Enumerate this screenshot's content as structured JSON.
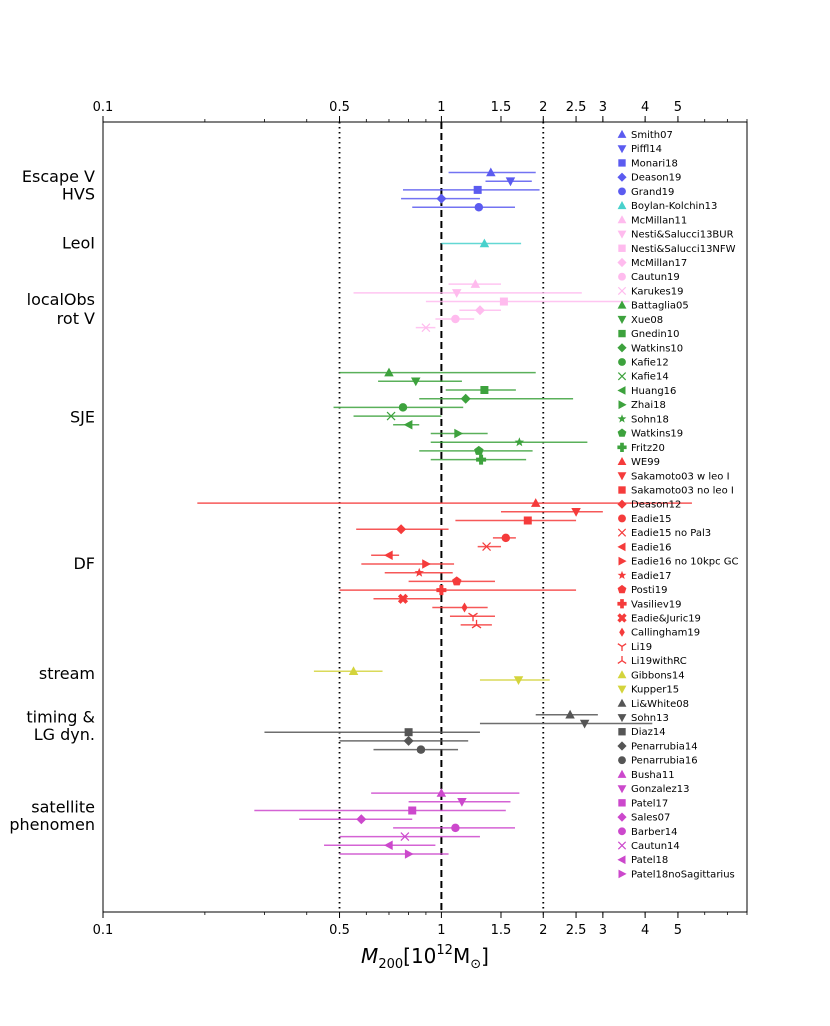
{
  "chart_data": {
    "type": "scatter",
    "xscale": "log",
    "xlim": [
      0.1,
      8.0
    ],
    "xlabel": "M",
    "xlabel_sub": "200",
    "xlabel_rest": "[10",
    "xlabel_sup": "12",
    "xlabel_unit": "M",
    "xlabel_unit_sub": "⊙",
    "xlabel_close": "]",
    "xticks": [
      {
        "value": 0.1,
        "label": "0.1"
      },
      {
        "value": 0.5,
        "label": "0.5"
      },
      {
        "value": 1,
        "label": "1"
      },
      {
        "value": 1.5,
        "label": "1.5"
      },
      {
        "value": 2,
        "label": "2"
      },
      {
        "value": 2.5,
        "label": "2.5"
      },
      {
        "value": 3,
        "label": "3"
      },
      {
        "value": 4,
        "label": "4"
      },
      {
        "value": 5,
        "label": "5"
      }
    ],
    "reference_lines": [
      {
        "value": 0.5,
        "style": "dotted"
      },
      {
        "value": 1,
        "style": "dashed"
      },
      {
        "value": 2,
        "style": "dotted"
      }
    ],
    "category_labels": [
      {
        "text": "Escape V",
        "row": 2.3
      },
      {
        "text": "HVS",
        "row": 3.5
      },
      {
        "text": "LeoI",
        "row": 6.9
      },
      {
        "text": "localObs",
        "row": 10.8
      },
      {
        "text": "rot V",
        "row": 12.1
      },
      {
        "text": "SJE",
        "row": 18.9
      },
      {
        "text": "DF",
        "row": 29.0
      },
      {
        "text": "stream",
        "row": 36.6
      },
      {
        "text": "timing &",
        "row": 39.6
      },
      {
        "text": "LG dyn.",
        "row": 40.8
      },
      {
        "text": "satellite",
        "row": 45.8
      },
      {
        "text": "phenomen",
        "row": 47.0
      }
    ],
    "series": [
      {
        "name": "Smith07",
        "color": "#5b5bf0",
        "marker": "tri-up",
        "y": 2,
        "x": 1.4,
        "xlo": 1.05,
        "xhi": 1.9
      },
      {
        "name": "Piffl14",
        "color": "#5b5bf0",
        "marker": "tri-down",
        "y": 2.6,
        "x": 1.6,
        "xlo": 1.35,
        "xhi": 1.85
      },
      {
        "name": "Monari18",
        "color": "#5b5bf0",
        "marker": "square",
        "y": 3.2,
        "x": 1.28,
        "xlo": 0.77,
        "xhi": 1.95
      },
      {
        "name": "Deason19",
        "color": "#5b5bf0",
        "marker": "diamond",
        "y": 3.8,
        "x": 1.0,
        "xlo": 0.76,
        "xhi": 1.3
      },
      {
        "name": "Grand19",
        "color": "#5b5bf0",
        "marker": "circle",
        "y": 4.4,
        "x": 1.29,
        "xlo": 0.82,
        "xhi": 1.65
      },
      {
        "name": "Boylan-Kolchin13",
        "color": "#48d1cc",
        "marker": "tri-up",
        "y": 6.9,
        "x": 1.34,
        "xlo": 1.0,
        "xhi": 1.72
      },
      {
        "name": "McMillan11",
        "color": "#ffbbee",
        "marker": "tri-up",
        "y": 9.7,
        "x": 1.26,
        "xlo": 1.05,
        "xhi": 1.5
      },
      {
        "name": "Nesti&Salucci13BUR",
        "color": "#ffbbee",
        "marker": "tri-down",
        "y": 10.3,
        "x": 1.11,
        "xlo": 0.55,
        "xhi": 2.6
      },
      {
        "name": "Nesti&Salucci13NFW",
        "color": "#ffbbee",
        "marker": "square",
        "y": 10.9,
        "x": 1.53,
        "xlo": 0.9,
        "xhi": 3.6
      },
      {
        "name": "McMillan17",
        "color": "#ffbbee",
        "marker": "diamond",
        "y": 11.5,
        "x": 1.3,
        "xlo": 1.13,
        "xhi": 1.5
      },
      {
        "name": "Cautun19",
        "color": "#ffbbee",
        "marker": "circle",
        "y": 12.1,
        "x": 1.1,
        "xlo": 0.96,
        "xhi": 1.25
      },
      {
        "name": "Karukes19",
        "color": "#ffbbee",
        "marker": "x",
        "y": 12.7,
        "x": 0.9,
        "xlo": 0.84,
        "xhi": 0.96
      },
      {
        "name": "Battaglia05",
        "color": "#3da23d",
        "marker": "tri-up",
        "y": 15.8,
        "x": 0.7,
        "xlo": 0.5,
        "xhi": 1.9
      },
      {
        "name": "Xue08",
        "color": "#3da23d",
        "marker": "tri-down",
        "y": 16.4,
        "x": 0.84,
        "xlo": 0.65,
        "xhi": 1.15
      },
      {
        "name": "Gnedin10",
        "color": "#3da23d",
        "marker": "square",
        "y": 17.0,
        "x": 1.34,
        "xlo": 1.03,
        "xhi": 1.66
      },
      {
        "name": "Watkins10",
        "color": "#3da23d",
        "marker": "diamond",
        "y": 17.6,
        "x": 1.18,
        "xlo": 0.86,
        "xhi": 2.45
      },
      {
        "name": "Kafie12",
        "color": "#3da23d",
        "marker": "circle",
        "y": 18.2,
        "x": 0.77,
        "xlo": 0.48,
        "xhi": 1.16
      },
      {
        "name": "Kafie14",
        "color": "#3da23d",
        "marker": "x",
        "y": 18.8,
        "x": 0.71,
        "xlo": 0.55,
        "xhi": 1.0
      },
      {
        "name": "Huang16",
        "color": "#3da23d",
        "marker": "tri-left",
        "y": 19.4,
        "x": 0.8,
        "xlo": 0.72,
        "xhi": 0.86
      },
      {
        "name": "Zhai18",
        "color": "#3da23d",
        "marker": "tri-right",
        "y": 20.0,
        "x": 1.12,
        "xlo": 0.93,
        "xhi": 1.37
      },
      {
        "name": "Sohn18",
        "color": "#3da23d",
        "marker": "star",
        "y": 20.6,
        "x": 1.7,
        "xlo": 0.93,
        "xhi": 2.7
      },
      {
        "name": "Watkins19",
        "color": "#3da23d",
        "marker": "pentagon",
        "y": 21.2,
        "x": 1.29,
        "xlo": 0.86,
        "xhi": 1.86
      },
      {
        "name": "Fritz20",
        "color": "#3da23d",
        "marker": "plus",
        "y": 21.8,
        "x": 1.31,
        "xlo": 0.93,
        "xhi": 1.78
      },
      {
        "name": "WE99",
        "color": "#f53b3b",
        "marker": "tri-up",
        "y": 24.8,
        "x": 1.9,
        "xlo": 0.19,
        "xhi": 5.5
      },
      {
        "name": "Sakamoto03 w leo I",
        "color": "#f53b3b",
        "marker": "tri-down",
        "y": 25.4,
        "x": 2.5,
        "xlo": 1.5,
        "xhi": 3.0
      },
      {
        "name": "Sakamoto03 no leo I",
        "color": "#f53b3b",
        "marker": "square",
        "y": 26.0,
        "x": 1.8,
        "xlo": 1.1,
        "xhi": 2.5
      },
      {
        "name": "Deason12",
        "color": "#f53b3b",
        "marker": "diamond",
        "y": 26.6,
        "x": 0.76,
        "xlo": 0.56,
        "xhi": 1.05
      },
      {
        "name": "Eadie15",
        "color": "#f53b3b",
        "marker": "circle",
        "y": 27.2,
        "x": 1.55,
        "xlo": 1.42,
        "xhi": 1.66
      },
      {
        "name": "Eadie15 no Pal3",
        "color": "#f53b3b",
        "marker": "x",
        "y": 27.8,
        "x": 1.36,
        "xlo": 1.28,
        "xhi": 1.5
      },
      {
        "name": "Eadie16",
        "color": "#f53b3b",
        "marker": "tri-left",
        "y": 28.4,
        "x": 0.7,
        "xlo": 0.62,
        "xhi": 0.75
      },
      {
        "name": "Eadie16 no 10kpc GC",
        "color": "#f53b3b",
        "marker": "tri-right",
        "y": 29.0,
        "x": 0.9,
        "xlo": 0.58,
        "xhi": 1.09
      },
      {
        "name": "Eadie17",
        "color": "#f53b3b",
        "marker": "star",
        "y": 29.6,
        "x": 0.86,
        "xlo": 0.68,
        "xhi": 1.08
      },
      {
        "name": "Posti19",
        "color": "#f53b3b",
        "marker": "pentagon",
        "y": 30.2,
        "x": 1.11,
        "xlo": 0.8,
        "xhi": 1.44
      },
      {
        "name": "Vasiliev19",
        "color": "#f53b3b",
        "marker": "plus",
        "y": 30.8,
        "x": 1.0,
        "xlo": 0.5,
        "xhi": 2.5
      },
      {
        "name": "Eadie&Juric19",
        "color": "#f53b3b",
        "marker": "xbold",
        "y": 31.4,
        "x": 0.77,
        "xlo": 0.63,
        "xhi": 0.99
      },
      {
        "name": "Callingham19",
        "color": "#f53b3b",
        "marker": "thin-diamond",
        "y": 32.0,
        "x": 1.17,
        "xlo": 0.94,
        "xhi": 1.37
      },
      {
        "name": "Li19",
        "color": "#f53b3b",
        "marker": "tri-up-y",
        "y": 32.6,
        "x": 1.24,
        "xlo": 1.06,
        "xhi": 1.44
      },
      {
        "name": "Li19withRC",
        "color": "#f53b3b",
        "marker": "tri-down-y",
        "y": 33.2,
        "x": 1.27,
        "xlo": 1.14,
        "xhi": 1.41
      },
      {
        "name": "Gibbons14",
        "color": "#d4d43c",
        "marker": "tri-up",
        "y": 36.4,
        "x": 0.55,
        "xlo": 0.42,
        "xhi": 0.67
      },
      {
        "name": "Kupper15",
        "color": "#d4d43c",
        "marker": "tri-down",
        "y": 37.0,
        "x": 1.69,
        "xlo": 1.3,
        "xhi": 2.09
      },
      {
        "name": "Li&White08",
        "color": "#555555",
        "marker": "tri-up",
        "y": 39.4,
        "x": 2.4,
        "xlo": 1.9,
        "xhi": 2.9
      },
      {
        "name": "Sohn13",
        "color": "#555555",
        "marker": "tri-down",
        "y": 40.0,
        "x": 2.65,
        "xlo": 1.3,
        "xhi": 4.2
      },
      {
        "name": "Diaz14",
        "color": "#555555",
        "marker": "square",
        "y": 40.6,
        "x": 0.8,
        "xlo": 0.3,
        "xhi": 1.3
      },
      {
        "name": "Penarrubia14",
        "color": "#555555",
        "marker": "diamond",
        "y": 41.2,
        "x": 0.8,
        "xlo": 0.5,
        "xhi": 1.2
      },
      {
        "name": "Penarrubia16",
        "color": "#555555",
        "marker": "circle",
        "y": 41.8,
        "x": 0.87,
        "xlo": 0.63,
        "xhi": 1.12
      },
      {
        "name": "Busha11",
        "color": "#cc48cc",
        "marker": "tri-up",
        "y": 44.8,
        "x": 1.0,
        "xlo": 0.62,
        "xhi": 1.7
      },
      {
        "name": "Gonzalez13",
        "color": "#cc48cc",
        "marker": "tri-down",
        "y": 45.4,
        "x": 1.15,
        "xlo": 0.8,
        "xhi": 1.6
      },
      {
        "name": "Patel17",
        "color": "#cc48cc",
        "marker": "square",
        "y": 46.0,
        "x": 0.82,
        "xlo": 0.28,
        "xhi": 1.55
      },
      {
        "name": "Sales07",
        "color": "#cc48cc",
        "marker": "diamond",
        "y": 46.6,
        "x": 0.58,
        "xlo": 0.38,
        "xhi": 0.82
      },
      {
        "name": "Barber14",
        "color": "#cc48cc",
        "marker": "circle",
        "y": 47.2,
        "x": 1.1,
        "xlo": 0.72,
        "xhi": 1.65
      },
      {
        "name": "Cautun14",
        "color": "#cc48cc",
        "marker": "x",
        "y": 47.8,
        "x": 0.78,
        "xlo": 0.5,
        "xhi": 1.3
      },
      {
        "name": "Patel18",
        "color": "#cc48cc",
        "marker": "tri-left",
        "y": 48.4,
        "x": 0.7,
        "xlo": 0.45,
        "xhi": 0.96
      },
      {
        "name": "Patel18noSagittarius",
        "color": "#cc48cc",
        "marker": "tri-right",
        "y": 49.0,
        "x": 0.8,
        "xlo": 0.5,
        "xhi": 1.05
      }
    ]
  }
}
